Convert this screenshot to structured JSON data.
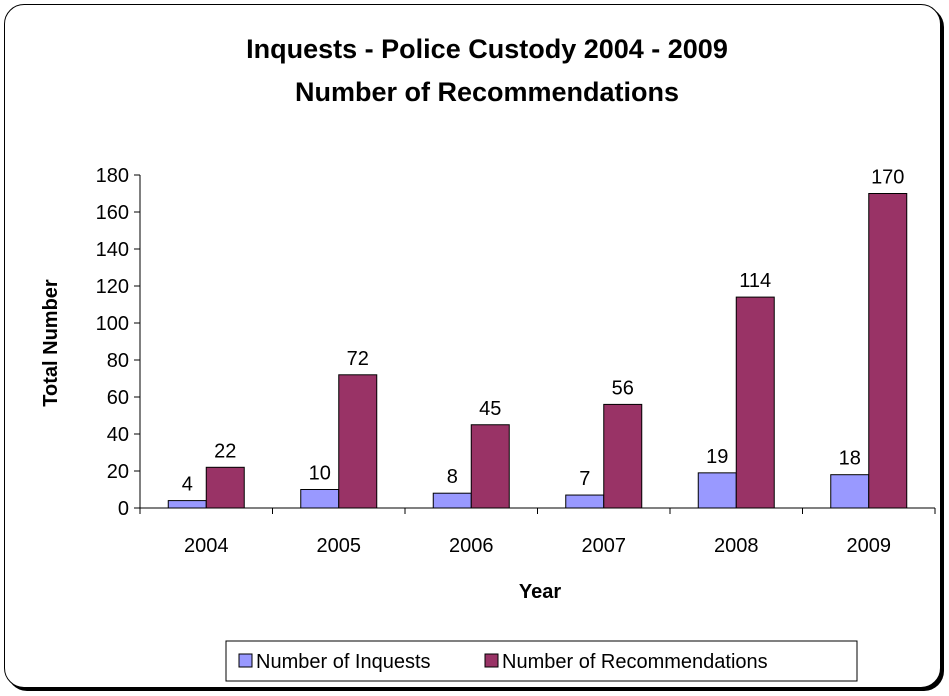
{
  "chart_data": {
    "type": "bar",
    "title": "Inquests - Police Custody  2004 - 2009",
    "subtitle": "Number of Recommendations",
    "xlabel": "Year",
    "ylabel": "Total Number",
    "categories": [
      "2004",
      "2005",
      "2006",
      "2007",
      "2008",
      "2009"
    ],
    "ylim": [
      0,
      180
    ],
    "yticks": [
      0,
      20,
      40,
      60,
      80,
      100,
      120,
      140,
      160,
      180
    ],
    "grid": false,
    "legend_position": "bottom",
    "series": [
      {
        "name": "Number of Inquests",
        "values": [
          4,
          10,
          8,
          7,
          19,
          18
        ],
        "color": "#9999ff"
      },
      {
        "name": "Number of Recommendations",
        "values": [
          22,
          72,
          45,
          56,
          114,
          170
        ],
        "color": "#993366"
      }
    ]
  }
}
